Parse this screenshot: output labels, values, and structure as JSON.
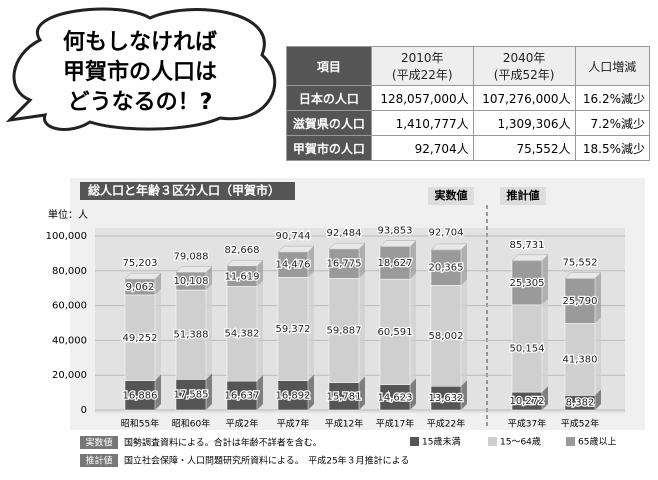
{
  "bubble": {
    "lines": [
      "何もしなければ",
      "甲賀市の人口は",
      "どうなるの！?"
    ]
  },
  "table": {
    "header": [
      "項目",
      "2010年\n(平成22年)",
      "2040年\n(平成52年)",
      "人口増減"
    ],
    "rows": [
      [
        "日本の人口",
        "128,057,000人",
        "107,276,000人",
        "16.2%減少"
      ],
      [
        "滋賀県の人口",
        "1,410,777人",
        "1,309,306人",
        "7.2%減少"
      ],
      [
        "甲賀市の人口",
        "92,704人",
        "75,552人",
        "18.5%減少"
      ]
    ]
  },
  "chart_data": {
    "type": "bar",
    "stacked": true,
    "title": "総人口と年齢３区分人口（甲賀市）",
    "unit_label": "単位：人",
    "annotations": [
      "実数値",
      "推計値"
    ],
    "categories": [
      "昭和55年",
      "昭和60年",
      "平成2年",
      "平成7年",
      "平成12年",
      "平成17年",
      "平成22年",
      "平成37年",
      "平成52年"
    ],
    "series": [
      {
        "name": "15歳未満",
        "color": "#555555",
        "values": [
          16886,
          17585,
          16637,
          16892,
          15781,
          14623,
          13632,
          10272,
          8382
        ],
        "value_labels": [
          "16,886",
          "17,585",
          "16,637",
          "16,892",
          "15,781",
          "14,623",
          "13,632",
          "10,272",
          "8,382"
        ]
      },
      {
        "name": "15～64歳",
        "color": "#cfcfcf",
        "values": [
          49252,
          51388,
          54382,
          59372,
          59887,
          60591,
          58002,
          50154,
          41380
        ],
        "value_labels": [
          "49,252",
          "51,388",
          "54,382",
          "59,372",
          "59,887",
          "60,591",
          "58,002",
          "50,154",
          "41,380"
        ]
      },
      {
        "name": "65歳以上",
        "color": "#9a9a9a",
        "values": [
          9062,
          10108,
          11619,
          14476,
          16775,
          18627,
          20365,
          25305,
          25790
        ],
        "value_labels": [
          "9,062",
          "10,108",
          "11,619",
          "14,476",
          "16,775",
          "18,627",
          "20,365",
          "25,305",
          "25,790"
        ]
      }
    ],
    "totals": [
      75203,
      79088,
      82668,
      90744,
      92484,
      93853,
      92704,
      85731,
      75552
    ],
    "totals_labels": [
      "75,203",
      "79,088",
      "82,668",
      "90,744",
      "92,484",
      "93,853",
      "92,704",
      "85,731",
      "75,552"
    ],
    "ylim": [
      0,
      100000
    ],
    "yticks": [
      0,
      {
        "value": 20000,
        "label": "20,000"
      },
      {
        "value": 40000,
        "label": "40,000"
      },
      {
        "value": 60000,
        "label": "60,000"
      },
      {
        "value": 80000,
        "label": "80,000"
      },
      {
        "value": 100000,
        "label": "100,000"
      }
    ],
    "grid": true,
    "notes": [
      {
        "tag": "実数値",
        "text": "国勢調査資料による。合計は年齢不詳者を含む。"
      },
      {
        "tag": "推計値",
        "text": "国立社会保障・人口問題研究所資料による。　平成25年３月推計による"
      }
    ]
  }
}
